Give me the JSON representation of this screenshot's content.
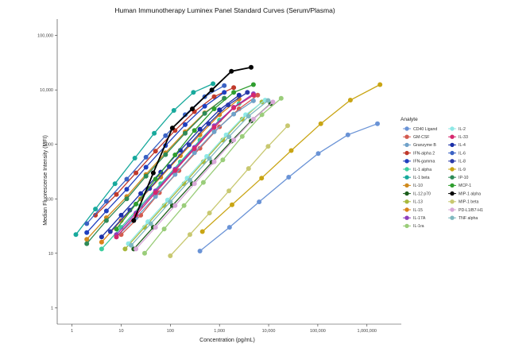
{
  "chart_data": {
    "type": "line",
    "title": "Human Immunotherapy Luminex Panel Standard Curves (Serum/Plasma)",
    "xlabel": "Concentration (pg/mL)",
    "ylabel": "Median Fluorescense Intensity (MFI)",
    "x_scale": "log",
    "y_scale": "log",
    "xlim": [
      0.5,
      5000000
    ],
    "ylim": [
      0.5,
      200000
    ],
    "x_ticks": [
      1,
      10,
      100,
      1000,
      10000,
      100000,
      1000000
    ],
    "x_tick_labels": [
      "1",
      "10",
      "100",
      "1,000",
      "10,000",
      "100,000",
      "1,000,000"
    ],
    "y_ticks": [
      1,
      10,
      100,
      1000,
      10000,
      100000
    ],
    "y_tick_labels": [
      "1",
      "10",
      "100",
      "1,000",
      "10,000",
      "100,000"
    ],
    "grid": false,
    "legend_title": "Analyte",
    "legend_position": "right",
    "series": [
      {
        "name": "CD40 Ligand",
        "color": "#6a93d6",
        "x": [
          400,
          1600,
          6400,
          25600,
          102400,
          409600,
          1638400
        ],
        "y": [
          11,
          30,
          88,
          250,
          680,
          1500,
          2400
        ]
      },
      {
        "name": "GM-CSF",
        "color": "#d35a4f",
        "x": [
          10,
          25,
          60,
          150,
          400,
          1000,
          2500,
          6000
        ],
        "y": [
          22,
          50,
          130,
          330,
          850,
          2100,
          4500,
          8000
        ]
      },
      {
        "name": "Granzyme B",
        "color": "#6fa1c9",
        "x": [
          8,
          20,
          50,
          125,
          310,
          780,
          1950,
          4900
        ],
        "y": [
          20,
          45,
          110,
          280,
          700,
          1700,
          3600,
          6300
        ]
      },
      {
        "name": "IFN-alpha 2",
        "color": "#c0392b",
        "x": [
          3,
          8,
          20,
          50,
          125,
          310,
          780,
          1950
        ],
        "y": [
          50,
          120,
          300,
          750,
          1800,
          4000,
          7500,
          11000
        ]
      },
      {
        "name": "IFN-gamma",
        "color": "#1f3fbf",
        "x": [
          2,
          5,
          13,
          32,
          80,
          200,
          500,
          1250
        ],
        "y": [
          24,
          60,
          150,
          380,
          950,
          2300,
          5000,
          9000
        ]
      },
      {
        "name": "IL-1 alpha",
        "color": "#3ccf9e",
        "x": [
          4,
          10,
          25,
          64,
          160,
          400,
          1000,
          2500
        ],
        "y": [
          12,
          30,
          75,
          190,
          480,
          1200,
          2800,
          5600
        ]
      },
      {
        "name": "IL-1 beta",
        "color": "#17a99c",
        "x": [
          1.2,
          3,
          7.5,
          19,
          47,
          118,
          295,
          740
        ],
        "y": [
          22,
          65,
          190,
          560,
          1600,
          4200,
          9000,
          13000
        ]
      },
      {
        "name": "IL-10",
        "color": "#d08a1e",
        "x": [
          2,
          5,
          13,
          32,
          80,
          200,
          500,
          1250
        ],
        "y": [
          18,
          45,
          110,
          280,
          700,
          1700,
          3800,
          7000
        ]
      },
      {
        "name": "IL-12 p70",
        "color": "#1d5e1d",
        "x": [
          18,
          45,
          110,
          280,
          700,
          1750,
          4400,
          11000
        ],
        "y": [
          12,
          30,
          75,
          190,
          470,
          1150,
          2700,
          5600
        ]
      },
      {
        "name": "IL-13",
        "color": "#a8b83c",
        "x": [
          12,
          30,
          75,
          190,
          470,
          1170,
          2900,
          7300
        ],
        "y": [
          12,
          30,
          75,
          190,
          480,
          1200,
          2900,
          6000
        ]
      },
      {
        "name": "IL-15",
        "color": "#d9821a",
        "x": [
          4,
          10,
          25,
          64,
          160,
          400,
          1000,
          2500
        ],
        "y": [
          16,
          40,
          100,
          250,
          620,
          1500,
          3500,
          6800
        ]
      },
      {
        "name": "IL-17A",
        "color": "#8e3fbd",
        "x": [
          8,
          20,
          50,
          125,
          310,
          780,
          1950,
          4900
        ],
        "y": [
          22,
          55,
          140,
          350,
          880,
          2200,
          4800,
          8500
        ]
      },
      {
        "name": "IL-1ra",
        "color": "#9acd7a",
        "x": [
          30,
          75,
          190,
          470,
          1170,
          2900,
          7300,
          18000
        ],
        "y": [
          10,
          28,
          75,
          200,
          520,
          1400,
          3500,
          7000
        ]
      },
      {
        "name": "IL-2",
        "color": "#8ee8e6",
        "x": [
          14,
          35,
          88,
          220,
          550,
          1370,
          3400,
          8500
        ],
        "y": [
          15,
          38,
          95,
          240,
          600,
          1500,
          3500,
          6500
        ]
      },
      {
        "name": "IL-33",
        "color": "#d6286e",
        "x": [
          8,
          20,
          50,
          125,
          310,
          780,
          1950,
          4900
        ],
        "y": [
          20,
          50,
          130,
          330,
          830,
          2050,
          4700,
          8000
        ]
      },
      {
        "name": "IL-4",
        "color": "#1a2fa8",
        "x": [
          4,
          10,
          25,
          64,
          160,
          400,
          1000,
          2500
        ],
        "y": [
          20,
          50,
          125,
          310,
          780,
          1900,
          4300,
          8000
        ]
      },
      {
        "name": "IL-6",
        "color": "#3a62c4",
        "x": [
          2,
          5,
          13,
          32,
          80,
          200,
          500,
          1250
        ],
        "y": [
          35,
          90,
          230,
          580,
          1450,
          3500,
          7500,
          12000
        ]
      },
      {
        "name": "IL-8",
        "color": "#2a3aa8",
        "x": [
          6,
          15,
          38,
          95,
          240,
          600,
          1500,
          3700
        ],
        "y": [
          25,
          62,
          155,
          390,
          980,
          2400,
          5300,
          9000
        ]
      },
      {
        "name": "IL-9",
        "color": "#c9a514",
        "x": [
          450,
          1800,
          7200,
          28800,
          115200,
          460800,
          1843200
        ],
        "y": [
          25,
          78,
          240,
          770,
          2400,
          6500,
          12500
        ]
      },
      {
        "name": "IP-10",
        "color": "#2e8b57",
        "x": [
          2,
          5,
          13,
          32,
          80,
          200,
          500,
          1250
        ],
        "y": [
          15,
          40,
          100,
          260,
          650,
          1600,
          3700,
          7000
        ]
      },
      {
        "name": "MCP-1",
        "color": "#2f9e2f",
        "x": [
          8,
          20,
          50,
          125,
          310,
          780,
          1950,
          4900
        ],
        "y": [
          28,
          80,
          230,
          640,
          1800,
          4500,
          9000,
          12500
        ]
      },
      {
        "name": "MIP-1 alpha",
        "color": "#000000",
        "x": [
          18,
          45,
          110,
          280,
          700,
          1750,
          4400
        ],
        "y": [
          40,
          300,
          2000,
          4500,
          10000,
          22000,
          26000
        ]
      },
      {
        "name": "MIP-1 beta",
        "color": "#c8c870",
        "x": [
          100,
          250,
          625,
          1560,
          3900,
          9750,
          24400
        ],
        "y": [
          9,
          22,
          55,
          140,
          360,
          920,
          2200
        ]
      },
      {
        "name": "PD-L1/B7-H1",
        "color": "#d8a8d8",
        "x": [
          20,
          50,
          125,
          310,
          780,
          1950,
          4900,
          12200
        ],
        "y": [
          12,
          30,
          75,
          190,
          480,
          1200,
          2900,
          6000
        ]
      },
      {
        "name": "TNF alpha",
        "color": "#7fb8bf",
        "x": [
          16,
          40,
          100,
          250,
          625,
          1560,
          3900,
          9750
        ],
        "y": [
          14,
          35,
          88,
          220,
          550,
          1380,
          3300,
          6400
        ]
      }
    ]
  }
}
